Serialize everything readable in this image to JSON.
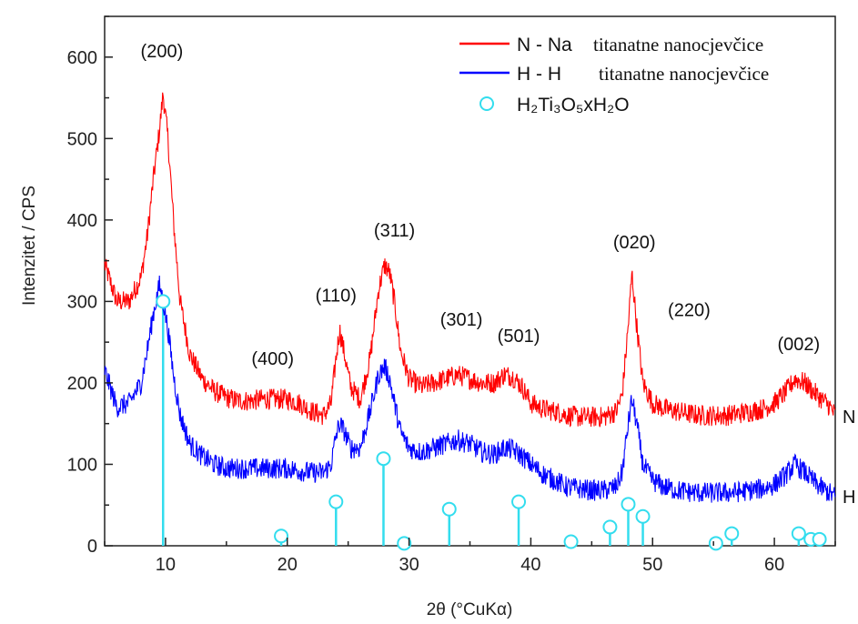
{
  "chart_data": {
    "type": "line",
    "xlabel": "2θ (°CuKα)",
    "ylabel": "Intenzitet / CPS",
    "xlim": [
      5,
      65
    ],
    "ylim": [
      0,
      650
    ],
    "x_ticks": [
      "10",
      "20",
      "30",
      "40",
      "50",
      "60"
    ],
    "y_ticks": [
      "0",
      "100",
      "200",
      "300",
      "400",
      "500",
      "600"
    ],
    "colors": {
      "N": "#ff0000",
      "H": "#0000ff",
      "ref": "#33ddee"
    },
    "legend": {
      "position": "top-right",
      "items": [
        {
          "prefix": "N - Na",
          "text": "titanatne nanocjevčice",
          "color": "#ff0000"
        },
        {
          "prefix": "H - H",
          "text": "titanatne nanocjevčice",
          "color": "#0000ff"
        },
        {
          "text": "H₂Ti₃O₅xH₂O",
          "color": "#33ddee",
          "marker": "circle"
        }
      ]
    },
    "series": [
      {
        "name": "N",
        "x": [
          5,
          6,
          7,
          8,
          8.5,
          9,
          9.5,
          9.8,
          10.2,
          10.7,
          11.2,
          12,
          13,
          14,
          15,
          16,
          17,
          18,
          19,
          20,
          21,
          22,
          23,
          23.6,
          24,
          24.3,
          24.7,
          25.2,
          26,
          26.8,
          27.5,
          28,
          28.4,
          28.8,
          29.3,
          30,
          31,
          32,
          33,
          34,
          35,
          36,
          37,
          37.8,
          38.5,
          39.3,
          40,
          41,
          42,
          43,
          44,
          45,
          46,
          47,
          47.5,
          48,
          48.3,
          48.7,
          49.2,
          50,
          51,
          52,
          53,
          54,
          55,
          56,
          57,
          58,
          59,
          60,
          61,
          61.7,
          62.5,
          63.5,
          64.5,
          65
        ],
        "y": [
          345,
          300,
          300,
          330,
          380,
          450,
          510,
          555,
          500,
          390,
          300,
          235,
          205,
          190,
          182,
          178,
          178,
          180,
          180,
          180,
          175,
          165,
          160,
          175,
          230,
          265,
          235,
          195,
          180,
          230,
          315,
          345,
          335,
          300,
          240,
          205,
          195,
          200,
          205,
          210,
          205,
          200,
          200,
          210,
          208,
          195,
          175,
          168,
          165,
          160,
          158,
          158,
          158,
          165,
          185,
          270,
          335,
          270,
          200,
          175,
          168,
          165,
          162,
          160,
          160,
          160,
          162,
          165,
          168,
          175,
          190,
          205,
          200,
          185,
          172,
          160
        ]
      },
      {
        "name": "H",
        "x": [
          5,
          6,
          7,
          8,
          8.5,
          9,
          9.5,
          9.8,
          10.2,
          10.7,
          11.2,
          12,
          13,
          14,
          15,
          16,
          17,
          18,
          19,
          20,
          21,
          22,
          23,
          23.6,
          24,
          24.3,
          24.7,
          25.2,
          26,
          26.8,
          27.5,
          28,
          28.4,
          28.8,
          29.3,
          30,
          31,
          32,
          33,
          34,
          35,
          36,
          37,
          37.8,
          38.5,
          39.3,
          40,
          41,
          42,
          43,
          44,
          45,
          46,
          47,
          47.5,
          48,
          48.3,
          48.7,
          49.2,
          50,
          51,
          52,
          53,
          54,
          55,
          56,
          57,
          58,
          59,
          60,
          61,
          61.7,
          62.5,
          63.5,
          64.5,
          65
        ],
        "y": [
          215,
          170,
          175,
          200,
          240,
          285,
          320,
          300,
          265,
          205,
          160,
          125,
          110,
          100,
          95,
          95,
          95,
          95,
          95,
          95,
          92,
          90,
          90,
          100,
          135,
          150,
          140,
          120,
          120,
          165,
          210,
          220,
          205,
          175,
          140,
          120,
          115,
          120,
          125,
          130,
          125,
          115,
          112,
          120,
          118,
          110,
          100,
          88,
          80,
          72,
          70,
          68,
          68,
          72,
          90,
          150,
          180,
          150,
          100,
          80,
          72,
          68,
          66,
          65,
          65,
          65,
          66,
          68,
          70,
          75,
          88,
          100,
          90,
          75,
          65,
          60
        ]
      },
      {
        "name": "H₂Ti₃O₅xH₂O",
        "type": "stem",
        "x": [
          9.8,
          19.5,
          24,
          27.9,
          29.6,
          33.3,
          39,
          43.3,
          46.5,
          48,
          49.2,
          55.2,
          56.5,
          62,
          63,
          63.7
        ],
        "y": [
          300,
          12,
          54,
          107,
          3,
          45,
          54,
          5,
          23,
          51,
          36,
          3,
          15,
          15,
          8,
          8
        ]
      }
    ],
    "peak_labels": [
      {
        "text": "(200)",
        "x": 9.7,
        "y": 600
      },
      {
        "text": "(400)",
        "x": 18.8,
        "y": 222
      },
      {
        "text": "(110)",
        "x": 24.0,
        "y": 300
      },
      {
        "text": "(311)",
        "x": 28.8,
        "y": 380
      },
      {
        "text": "(301)",
        "x": 34.3,
        "y": 270
      },
      {
        "text": "(501)",
        "x": 39.0,
        "y": 250
      },
      {
        "text": "(020)",
        "x": 48.5,
        "y": 365
      },
      {
        "text": "(220)",
        "x": 53.0,
        "y": 282
      },
      {
        "text": "(002)",
        "x": 62.0,
        "y": 240
      }
    ],
    "end_labels": [
      "N",
      "H"
    ]
  }
}
